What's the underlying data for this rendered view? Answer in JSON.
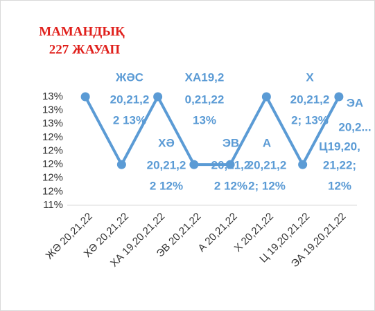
{
  "chart_data": {
    "type": "line",
    "title_lines": [
      "МАМАНДЫҚ",
      "227 ЖАУАП"
    ],
    "categories": [
      "ЖӘ 20,21,22",
      "ХӘ 20,21,22",
      "ХА 19,20,21,22",
      "ЭВ 20,21,22",
      "А 20,21,22",
      "Х 20,21,22",
      "Ц 19,20,21,22",
      "ЭА 19,20,21,22"
    ],
    "values": [
      13,
      12,
      13,
      12,
      12,
      13,
      12,
      13
    ],
    "value_labels": [
      [
        "ЖӘС",
        "20,21,2",
        "2 13%"
      ],
      [
        "ХӘ",
        "20,21,2",
        "2 12%"
      ],
      [
        "ХА19,2",
        "0,21,22",
        "13%"
      ],
      [
        "ЭВ",
        "20,21,2",
        "2 12%"
      ],
      [
        "А",
        "20,21,2",
        "2; 12%"
      ],
      [
        "Х",
        "20,21,2",
        "2; 13%"
      ],
      [
        "Ц19,20,",
        "21,22;",
        "12%"
      ],
      [
        "ЭА",
        "20,2..."
      ]
    ],
    "color": "#5b9bd5",
    "ylim": [
      11.4,
      13
    ],
    "yticks": [
      {
        "value": 13,
        "label": "13%"
      },
      {
        "value": 12.8,
        "label": "13%"
      },
      {
        "value": 12.6,
        "label": "13%"
      },
      {
        "value": 12.4,
        "label": "12%"
      },
      {
        "value": 12.2,
        "label": "12%"
      },
      {
        "value": 12,
        "label": "12%"
      },
      {
        "value": 11.8,
        "label": "12%"
      },
      {
        "value": 11.6,
        "label": "12%"
      },
      {
        "value": 11.4,
        "label": "11%"
      }
    ]
  }
}
